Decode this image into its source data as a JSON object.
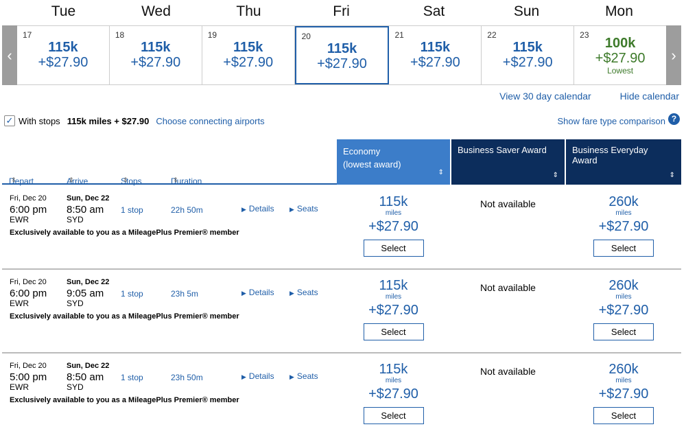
{
  "days": [
    "Tue",
    "Wed",
    "Thu",
    "Fri",
    "Sat",
    "Sun",
    "Mon"
  ],
  "calendar": [
    {
      "date": "17",
      "miles": "115k",
      "price": "+$27.90"
    },
    {
      "date": "18",
      "miles": "115k",
      "price": "+$27.90"
    },
    {
      "date": "19",
      "miles": "115k",
      "price": "+$27.90"
    },
    {
      "date": "20",
      "miles": "115k",
      "price": "+$27.90"
    },
    {
      "date": "21",
      "miles": "115k",
      "price": "+$27.90"
    },
    {
      "date": "22",
      "miles": "115k",
      "price": "+$27.90"
    },
    {
      "date": "23",
      "miles": "100k",
      "price": "+$27.90",
      "note": "Lowest"
    }
  ],
  "nav": {
    "prev_icon": "‹",
    "next_icon": "›"
  },
  "links": {
    "view30": "View 30 day calendar",
    "hide": "Hide calendar"
  },
  "filters": {
    "check": "✓",
    "with_stops": "With stops",
    "stops_price": "115k miles + $27.90",
    "connecting": "Choose connecting airports",
    "fare_compare": "Show fare type comparison",
    "help": "?"
  },
  "columns": {
    "depart": "Depart",
    "arrive": "Arrive",
    "stops": "Stops",
    "duration": "Duration",
    "sort": "⇕"
  },
  "fares": {
    "economy_1": "Economy",
    "economy_2": "(lowest award)",
    "business_saver": "Business Saver Award",
    "business_everyday": "Business Everyday Award"
  },
  "labels": {
    "details": "Details",
    "seats": "Seats",
    "miles": "miles",
    "select": "Select",
    "not_available": "Not available",
    "tri": "▶"
  },
  "flights": [
    {
      "dep_date": "Fri, Dec 20",
      "dep_time": "6:00 pm",
      "dep_ap": "EWR",
      "arr_date": "Sun, Dec 22",
      "arr_time": "8:50 am",
      "arr_ap": "SYD",
      "stops": "1 stop",
      "duration": "22h 50m",
      "note": "Exclusively available to you as a MileagePlus Premier® member",
      "eco_miles": "115k",
      "eco_price": "+$27.90",
      "bea_miles": "260k",
      "bea_price": "+$27.90"
    },
    {
      "dep_date": "Fri, Dec 20",
      "dep_time": "6:00 pm",
      "dep_ap": "EWR",
      "arr_date": "Sun, Dec 22",
      "arr_time": "9:05 am",
      "arr_ap": "SYD",
      "stops": "1 stop",
      "duration": "23h 5m",
      "note": "Exclusively available to you as a MileagePlus Premier® member",
      "eco_miles": "115k",
      "eco_price": "+$27.90",
      "bea_miles": "260k",
      "bea_price": "+$27.90"
    },
    {
      "dep_date": "Fri, Dec 20",
      "dep_time": "5:00 pm",
      "dep_ap": "EWR",
      "arr_date": "Sun, Dec 22",
      "arr_time": "8:50 am",
      "arr_ap": "SYD",
      "stops": "1 stop",
      "duration": "23h 50m",
      "note": "Exclusively available to you as a MileagePlus Premier® member",
      "eco_miles": "115k",
      "eco_price": "+$27.90",
      "bea_miles": "260k",
      "bea_price": "+$27.90"
    }
  ]
}
